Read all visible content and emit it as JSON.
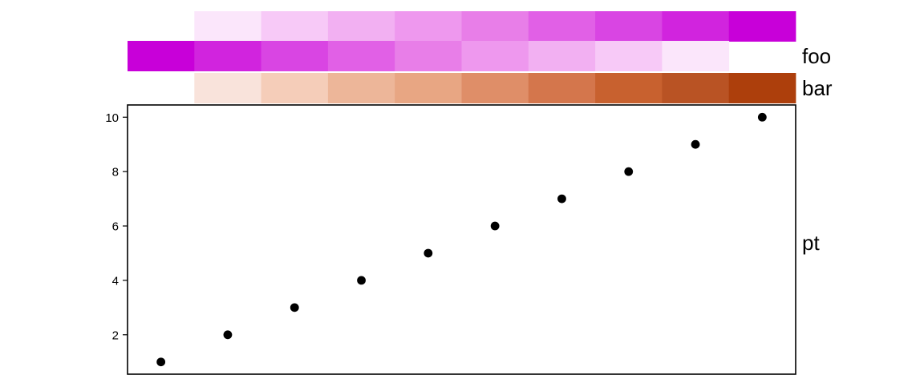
{
  "chart_data": {
    "type": "scatter",
    "x": [
      1,
      2,
      3,
      4,
      5,
      6,
      7,
      8,
      9,
      10
    ],
    "y": [
      1,
      2,
      3,
      4,
      5,
      6,
      7,
      8,
      9,
      10
    ],
    "xlim": [
      0.5,
      10.5
    ],
    "ylim": [
      0.55,
      10.45
    ],
    "y_ticks": [
      2,
      4,
      6,
      8,
      10
    ],
    "x_ticks": [],
    "grid": false,
    "point_color": "#000000",
    "frame_color": "#000000",
    "panel_label": "pt",
    "tracks": [
      {
        "name": "foo",
        "show_name": false,
        "colors": [
          null,
          "#fbe6fb",
          "#f7c9f7",
          "#f2b0f2",
          "#ee98ee",
          "#e87ee8",
          "#e160e6",
          "#d945e3",
          "#d124de",
          "#c800d9"
        ]
      },
      {
        "name": "foo",
        "show_name": true,
        "colors": [
          "#c800d9",
          "#d124de",
          "#d945e3",
          "#e160e6",
          "#e87ee8",
          "#ee98ee",
          "#f2b0f2",
          "#f7c9f7",
          "#fbe6fb",
          null
        ]
      },
      {
        "name": "bar",
        "show_name": true,
        "colors": [
          null,
          "#f9e3db",
          "#f5cdb9",
          "#edb699",
          "#e8a683",
          "#df8e68",
          "#d4764c",
          "#c8612f",
          "#b95324",
          "#ad3f0c"
        ]
      }
    ]
  }
}
